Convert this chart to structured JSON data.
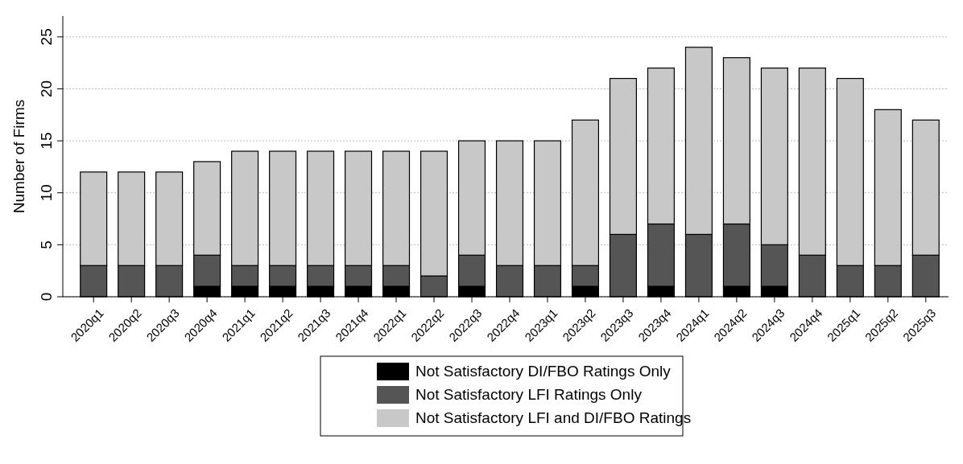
{
  "chart_data": {
    "type": "bar",
    "ylabel": "Number of Firms",
    "stacked": true,
    "grid": "y",
    "legend": "bottom",
    "categories": [
      "2020q1",
      "2020q2",
      "2020q3",
      "2020q4",
      "2021q1",
      "2021q2",
      "2021q3",
      "2021q4",
      "2022q1",
      "2022q2",
      "2022q3",
      "2022q4",
      "2023q1",
      "2023q2",
      "2023q3",
      "2023q4",
      "2024q1",
      "2024q2",
      "2024q3",
      "2024q4",
      "2025q1",
      "2025q2",
      "2025q3"
    ],
    "series": [
      {
        "name": "Not Satisfactory DI/FBO Ratings Only",
        "color": "#000000",
        "values": [
          0,
          0,
          0,
          1,
          1,
          1,
          1,
          1,
          1,
          0,
          1,
          0,
          0,
          1,
          0,
          1,
          0,
          1,
          1,
          0,
          0,
          0,
          0
        ]
      },
      {
        "name": "Not Satisfactory LFI Ratings Only",
        "color": "#555555",
        "values": [
          3,
          3,
          3,
          3,
          2,
          2,
          2,
          2,
          2,
          2,
          3,
          3,
          3,
          2,
          6,
          6,
          6,
          6,
          4,
          4,
          3,
          3,
          4
        ]
      },
      {
        "name": "Not Satisfactory LFI and DI/FBO Ratings",
        "color": "#c8c8c8",
        "values": [
          9,
          9,
          9,
          9,
          11,
          11,
          11,
          11,
          11,
          12,
          11,
          12,
          12,
          14,
          15,
          15,
          18,
          16,
          17,
          18,
          18,
          15,
          13
        ]
      }
    ],
    "ylim": [
      0,
      27
    ],
    "yticks": [
      0,
      5,
      10,
      15,
      20,
      25
    ]
  }
}
